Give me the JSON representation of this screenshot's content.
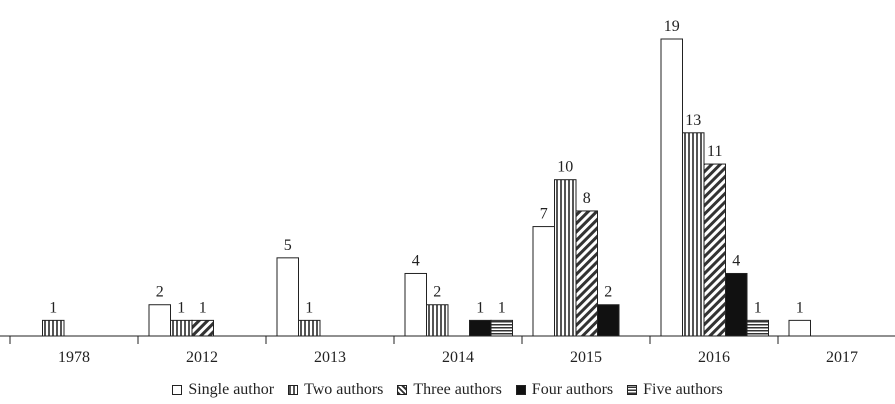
{
  "chart_data": {
    "type": "bar",
    "categories": [
      "1978",
      "2012",
      "2013",
      "2014",
      "2015",
      "2016",
      "2017"
    ],
    "series": [
      {
        "name": "Single author",
        "pattern": "empty",
        "values": [
          0,
          2,
          5,
          4,
          7,
          19,
          1
        ]
      },
      {
        "name": "Two authors",
        "pattern": "vertical",
        "values": [
          1,
          1,
          1,
          2,
          10,
          13,
          0
        ]
      },
      {
        "name": "Three authors",
        "pattern": "diagonal",
        "values": [
          0,
          1,
          0,
          0,
          8,
          11,
          0
        ]
      },
      {
        "name": "Four authors",
        "pattern": "solid",
        "values": [
          0,
          0,
          0,
          1,
          2,
          4,
          0
        ]
      },
      {
        "name": "Five authors",
        "pattern": "horizontal",
        "values": [
          0,
          0,
          0,
          1,
          0,
          1,
          0
        ]
      }
    ],
    "title": "",
    "xlabel": "",
    "ylabel": "",
    "ylim": [
      0,
      19
    ],
    "grid": false,
    "legend_position": "bottom",
    "colors": {
      "stroke": "#222222",
      "fill_empty": "#ffffff",
      "fill_solid": "#111111"
    }
  }
}
